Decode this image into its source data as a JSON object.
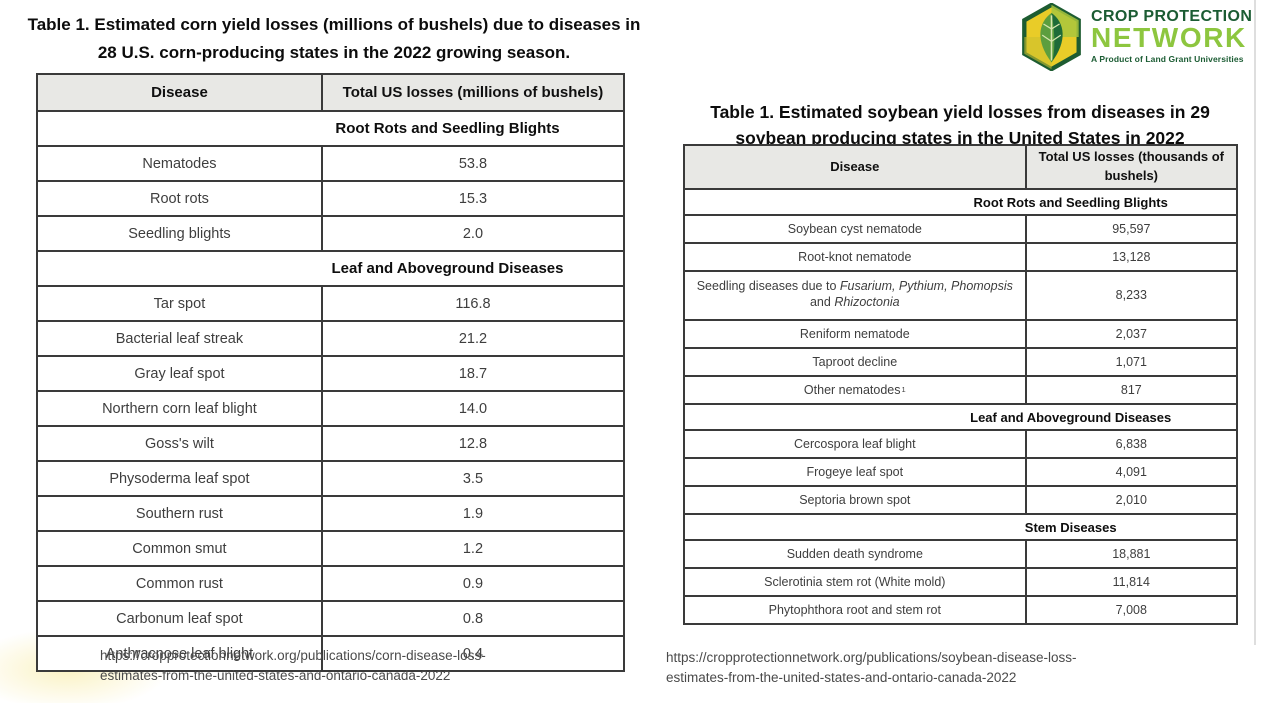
{
  "logo": {
    "line1": "CROP PROTECTION",
    "line2": "NETWORK",
    "tagline": "A Product of Land Grant Universities",
    "colors": {
      "dark_green": "#1b5c33",
      "light_green": "#8dc63f",
      "yellow": "#e9cc28"
    }
  },
  "corn_table": {
    "title_line1": "Table 1. Estimated corn yield losses (millions of bushels) due to diseases in",
    "title_line2": "28 U.S. corn-producing states in the 2022 growing season.",
    "columns": [
      "Disease",
      "Total US losses (millions of bushels)"
    ],
    "sections": [
      {
        "name": "Root Rots and Seedling Blights",
        "rows": [
          {
            "disease": "Nematodes",
            "value": "53.8"
          },
          {
            "disease": "Root rots",
            "value": "15.3"
          },
          {
            "disease": "Seedling blights",
            "value": "2.0"
          }
        ]
      },
      {
        "name": "Leaf and Aboveground Diseases",
        "rows": [
          {
            "disease": "Tar spot",
            "value": "116.8"
          },
          {
            "disease": "Bacterial leaf streak",
            "value": "21.2"
          },
          {
            "disease": "Gray leaf spot",
            "value": "18.7"
          },
          {
            "disease": "Northern corn leaf blight",
            "value": "14.0"
          },
          {
            "disease": "Goss's wilt",
            "value": "12.8"
          },
          {
            "disease": "Physoderma leaf spot",
            "value": "3.5"
          },
          {
            "disease": "Southern rust",
            "value": "1.9"
          },
          {
            "disease": "Common smut",
            "value": "1.2"
          },
          {
            "disease": "Common rust",
            "value": "0.9"
          },
          {
            "disease": "Carbonum leaf spot",
            "value": "0.8"
          },
          {
            "disease": "Anthracnose leaf blight",
            "value": "0.4"
          }
        ]
      }
    ],
    "source_line1": "https://cropprotectionnetwork.org/publications/corn-disease-loss-",
    "source_line2": "estimates-from-the-united-states-and-ontario-canada-2022"
  },
  "soy_table": {
    "title_line1": "Table 1. Estimated soybean yield losses from diseases in 29",
    "title_line2": "soybean producing states in the United States in 2022",
    "columns": [
      "Disease",
      "Total US losses (thousands of bushels)"
    ],
    "sections": [
      {
        "name": "Root Rots and Seedling Blights",
        "rows": [
          {
            "disease": "Soybean cyst nematode",
            "value": "95,597"
          },
          {
            "disease": "Root-knot nematode",
            "value": "13,128"
          },
          {
            "segments": [
              {
                "text": "Seedling diseases due to "
              },
              {
                "text": "Fusarium, Pythium, Phomopsis",
                "italic": true
              },
              {
                "text": " and "
              },
              {
                "text": "Rhizoctonia",
                "italic": true
              }
            ],
            "tall": true,
            "value": "8,233"
          },
          {
            "disease": "Reniform nematode",
            "value": "2,037"
          },
          {
            "disease": "Taproot decline",
            "value": "1,071"
          },
          {
            "disease": "Other nematodes",
            "sup": "1",
            "value": "817"
          }
        ]
      },
      {
        "name": "Leaf and Aboveground Diseases",
        "rows": [
          {
            "disease": "Cercospora leaf blight",
            "value": "6,838"
          },
          {
            "disease": "Frogeye leaf spot",
            "value": "4,091"
          },
          {
            "disease": "Septoria brown spot",
            "value": "2,010"
          }
        ]
      },
      {
        "name": "Stem Diseases",
        "rows": [
          {
            "disease": "Sudden death syndrome",
            "value": "18,881"
          },
          {
            "disease": "Sclerotinia stem rot (White mold)",
            "value": "11,814"
          },
          {
            "disease": "Phytophthora root and stem rot",
            "value": "7,008"
          }
        ]
      }
    ],
    "source_line1": "https://cropprotectionnetwork.org/publications/soybean-disease-loss-",
    "source_line2": "estimates-from-the-united-states-and-ontario-canada-2022"
  }
}
